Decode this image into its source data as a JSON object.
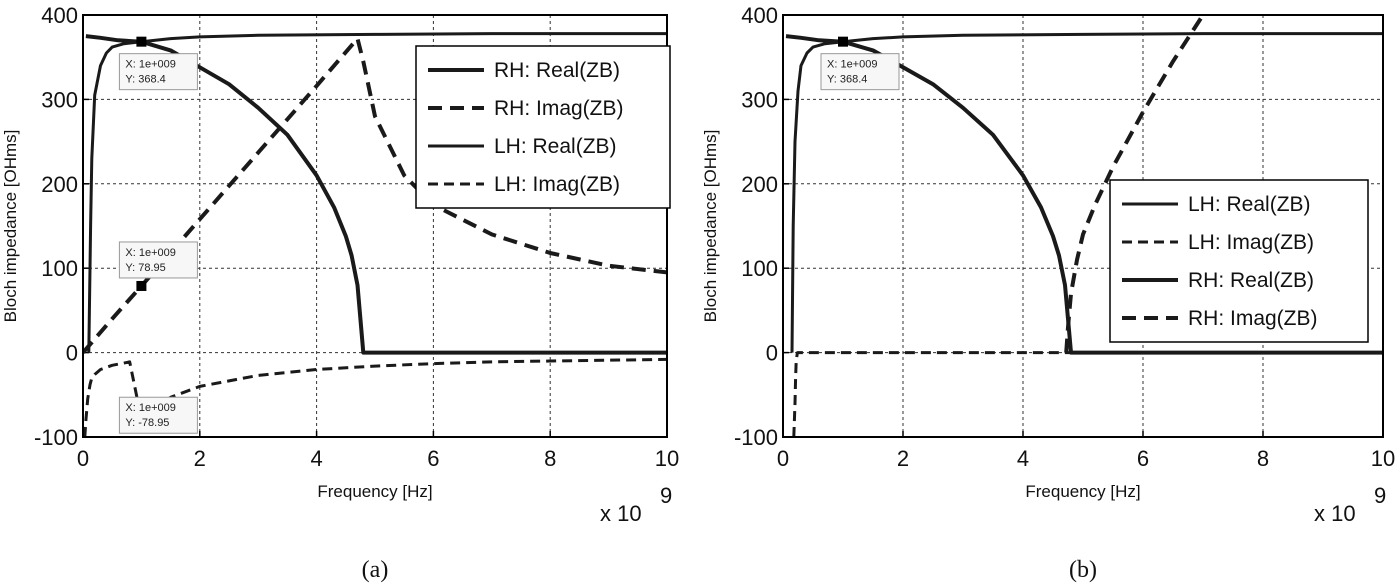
{
  "chart_data": [
    {
      "type": "line",
      "caption": "(a)",
      "xlabel": "Frequency [Hz]",
      "ylabel": "Bloch impedance [OHms]",
      "x_multiplier": "x 10",
      "x_multiplier_exp": "9",
      "xlim": [
        0,
        10
      ],
      "ylim": [
        -100,
        400
      ],
      "x_ticks": [
        "0",
        "2",
        "4",
        "6",
        "8",
        "10"
      ],
      "y_ticks": [
        "400",
        "300",
        "200",
        "100",
        "0",
        "-100"
      ],
      "grid": true,
      "legend_position": "top-right",
      "series": [
        {
          "name": "RH: Real(ZB)",
          "style": "solid",
          "width": 4,
          "x": [
            0.05,
            0.3,
            0.6,
            1.0,
            1.5,
            2.0,
            2.5,
            3.0,
            3.5,
            4.0,
            4.3,
            4.5,
            4.6,
            4.7,
            4.75,
            4.8,
            6,
            8,
            10
          ],
          "y": [
            375,
            373,
            370,
            368.4,
            358,
            338,
            318,
            290,
            258,
            210,
            172,
            138,
            115,
            80,
            40,
            0,
            0,
            0,
            0
          ]
        },
        {
          "name": "RH: Imag(ZB)",
          "style": "dashed",
          "width": 4,
          "x": [
            0,
            0.5,
            1.0,
            2.0,
            3.0,
            4.0,
            4.7,
            4.8,
            5.0,
            5.5,
            6.0,
            7.0,
            8.0,
            9.0,
            10.0
          ],
          "y": [
            0,
            40,
            78.95,
            158,
            237,
            316,
            372,
            345,
            280,
            210,
            175,
            140,
            118,
            103,
            95
          ]
        },
        {
          "name": "LH: Real(ZB)",
          "style": "solid",
          "width": 3,
          "x": [
            0.1,
            0.13,
            0.15,
            0.2,
            0.3,
            0.4,
            0.5,
            0.7,
            1.0,
            1.5,
            2.0,
            3.0,
            5.0,
            7.0,
            10.0
          ],
          "y": [
            0,
            150,
            230,
            305,
            340,
            355,
            362,
            366,
            368.4,
            372,
            374,
            376,
            377,
            378,
            378
          ]
        },
        {
          "name": "LH: Imag(ZB)",
          "style": "dashed",
          "width": 3,
          "x": [
            0.03,
            0.05,
            0.08,
            0.12,
            0.15,
            0.2,
            0.3,
            0.5,
            0.8,
            1.0,
            1.5,
            2.0,
            3.0,
            4.0,
            5.0,
            6.0,
            7.0,
            8.0,
            9.0,
            10.0
          ],
          "y": [
            -100,
            -80,
            -55,
            -38,
            -30,
            -26,
            -20,
            -15,
            -11,
            -78.95,
            -53,
            -40,
            -27,
            -20,
            -16,
            -13,
            -11,
            -10,
            -9,
            -8
          ]
        }
      ],
      "datatips": [
        {
          "x_label": "X: 1e+009",
          "y_label": "Y: 368.4",
          "x": 1.0,
          "y": 368.4
        },
        {
          "x_label": "X: 1e+009",
          "y_label": "Y: 78.95",
          "x": 1.0,
          "y": 78.95
        },
        {
          "x_label": "X: 1e+009",
          "y_label": "Y: -78.95",
          "x": 1.0,
          "y": -78.95
        }
      ]
    },
    {
      "type": "line",
      "caption": "(b)",
      "xlabel": "Frequency [Hz]",
      "ylabel": "Bloch impedance [OHms]",
      "x_multiplier": "x 10",
      "x_multiplier_exp": "9",
      "xlim": [
        0,
        10
      ],
      "ylim": [
        -100,
        400
      ],
      "x_ticks": [
        "0",
        "2",
        "4",
        "6",
        "8",
        "10"
      ],
      "y_ticks": [
        "400",
        "300",
        "200",
        "100",
        "0",
        "-100"
      ],
      "grid": true,
      "legend_position": "center-right",
      "series": [
        {
          "name": "LH: Real(ZB)",
          "style": "solid",
          "width": 3,
          "x": [
            0.15,
            0.17,
            0.2,
            0.25,
            0.3,
            0.4,
            0.5,
            0.7,
            1.0,
            1.5,
            2.0,
            3.0,
            5.0,
            7.0,
            10.0
          ],
          "y": [
            0,
            150,
            250,
            310,
            340,
            355,
            362,
            366,
            368.4,
            372,
            374,
            376,
            377,
            378,
            378
          ]
        },
        {
          "name": "LH: Imag(ZB)",
          "style": "dashed",
          "width": 3,
          "x": [
            0.18,
            0.2,
            0.21,
            0.22,
            0.24,
            0.3,
            1.0,
            3.0,
            5.0,
            8.0,
            10.0
          ],
          "y": [
            -100,
            -60,
            -30,
            -10,
            0,
            0,
            0,
            0,
            0,
            0,
            0
          ]
        },
        {
          "name": "RH: Real(ZB)",
          "style": "solid",
          "width": 4,
          "x": [
            0.05,
            0.3,
            0.6,
            1.0,
            1.5,
            2.0,
            2.5,
            3.0,
            3.5,
            4.0,
            4.3,
            4.5,
            4.6,
            4.7,
            4.75,
            4.8,
            6,
            8,
            10
          ],
          "y": [
            375,
            373,
            370,
            368.4,
            358,
            338,
            318,
            290,
            258,
            210,
            172,
            138,
            115,
            80,
            40,
            0,
            0,
            0,
            0
          ]
        },
        {
          "name": "RH: Imag(ZB)",
          "style": "dashed",
          "width": 4,
          "x": [
            4.72,
            4.75,
            4.8,
            4.9,
            5.0,
            5.2,
            5.5,
            6.0,
            6.5,
            7.0
          ],
          "y": [
            0,
            30,
            70,
            110,
            140,
            175,
            220,
            285,
            345,
            400
          ]
        }
      ],
      "datatips": [
        {
          "x_label": "X: 1e+009",
          "y_label": "Y: 368.4",
          "x": 1.0,
          "y": 368.4
        }
      ]
    }
  ]
}
